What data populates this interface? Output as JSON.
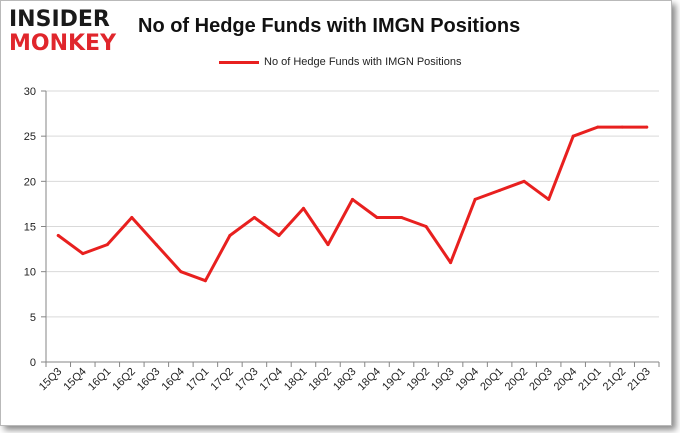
{
  "logo": {
    "top": "INSIDER",
    "bottom": "MONKEY"
  },
  "chart_data": {
    "type": "line",
    "title": "No of Hedge Funds with IMGN Positions",
    "xlabel": "",
    "ylabel": "",
    "categories": [
      "15Q3",
      "15Q4",
      "16Q1",
      "16Q2",
      "16Q3",
      "16Q4",
      "17Q1",
      "17Q2",
      "17Q3",
      "17Q4",
      "18Q1",
      "18Q2",
      "18Q3",
      "18Q4",
      "19Q1",
      "19Q2",
      "19Q3",
      "19Q4",
      "20Q1",
      "20Q2",
      "20Q3",
      "20Q4",
      "21Q1",
      "21Q2",
      "21Q3"
    ],
    "series": [
      {
        "name": "No of Hedge Funds with IMGN Positions",
        "values": [
          14,
          12,
          13,
          16,
          13,
          10,
          9,
          14,
          16,
          14,
          17,
          13,
          18,
          16,
          16,
          15,
          11,
          18,
          19,
          20,
          18,
          25,
          26,
          26,
          26
        ],
        "color": "#e8201f"
      }
    ],
    "ylim": [
      0,
      30
    ],
    "yticks": [
      0,
      5,
      10,
      15,
      20,
      25,
      30
    ],
    "grid": "horizontal",
    "legend_position": "top-center"
  }
}
